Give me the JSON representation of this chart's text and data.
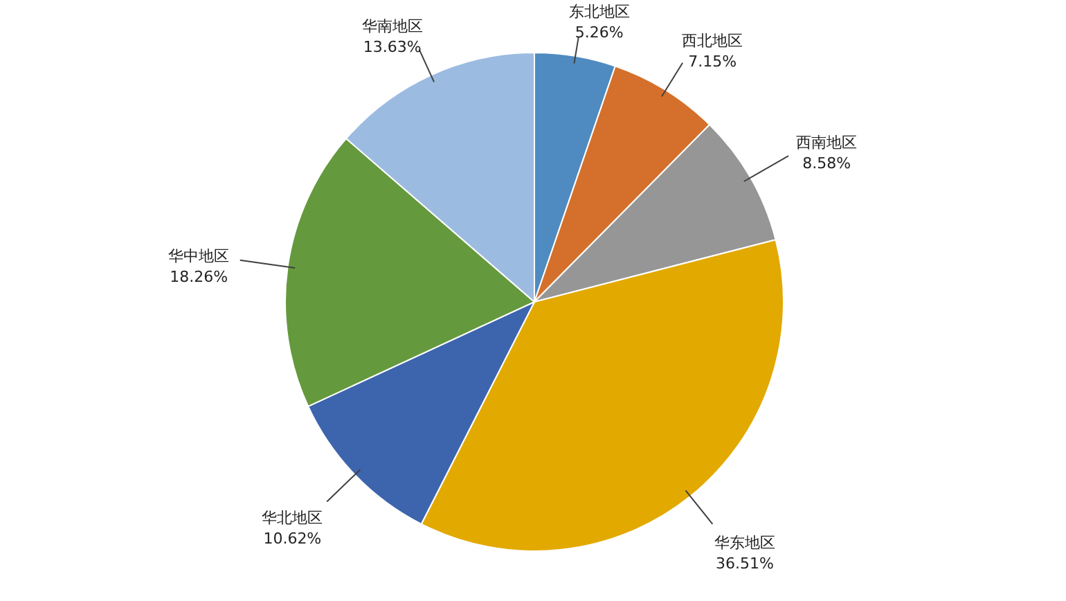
{
  "chart_data": {
    "type": "pie",
    "categories": [
      "东北地区",
      "西北地区",
      "西南地区",
      "华东地区",
      "华北地区",
      "华中地区",
      "华南地区"
    ],
    "values": [
      5.26,
      7.15,
      8.58,
      36.51,
      10.62,
      18.26,
      13.63
    ],
    "value_labels": [
      "5.26%",
      "7.15%",
      "8.58%",
      "36.51%",
      "10.62%",
      "18.26%",
      "13.63%"
    ],
    "colors": [
      "#4f8bc0",
      "#d4702b",
      "#969696",
      "#e2a900",
      "#3d65ae",
      "#65993d",
      "#9cbbe1"
    ]
  }
}
